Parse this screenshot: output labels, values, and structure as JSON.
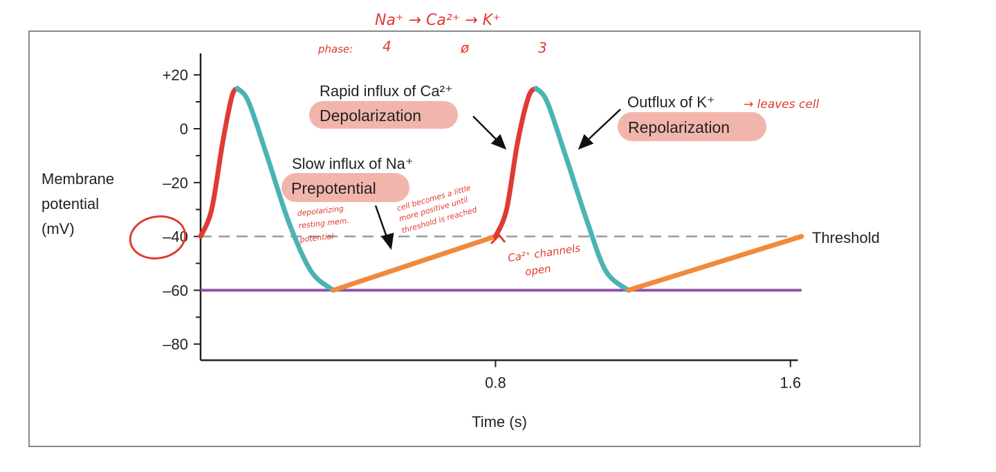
{
  "chart_data": {
    "type": "line",
    "xlabel": "Time (s)",
    "ylabel": [
      "Membrane",
      "potential",
      "(mV)"
    ],
    "xlim": [
      0,
      1.6
    ],
    "ylim": [
      -80,
      20
    ],
    "x_ticks": [
      {
        "v": 0.8,
        "label": "0.8"
      },
      {
        "v": 1.6,
        "label": "1.6"
      }
    ],
    "y_ticks": [
      {
        "v": 20,
        "label": "+20"
      },
      {
        "v": 0,
        "label": "0"
      },
      {
        "v": -20,
        "label": "–20"
      },
      {
        "v": -40,
        "label": "–40"
      },
      {
        "v": -60,
        "label": "–60"
      },
      {
        "v": -80,
        "label": "–80"
      }
    ],
    "grid": false,
    "reference_lines": [
      {
        "y": -40,
        "label": "Threshold",
        "style": "dashed",
        "color": "#999999"
      },
      {
        "y": -60,
        "label": "",
        "style": "solid",
        "color": "#8e4fa8"
      }
    ],
    "segments": [
      {
        "phase": "depolarization",
        "color": "#e03a35",
        "points": [
          [
            0,
            -40
          ],
          [
            0.03,
            -30
          ],
          [
            0.06,
            -5
          ],
          [
            0.085,
            12
          ],
          [
            0.1,
            15
          ]
        ]
      },
      {
        "phase": "repolarization",
        "color": "#4bb3b3",
        "points": [
          [
            0.1,
            15
          ],
          [
            0.13,
            10
          ],
          [
            0.18,
            -10
          ],
          [
            0.24,
            -35
          ],
          [
            0.3,
            -53
          ],
          [
            0.36,
            -60
          ]
        ]
      },
      {
        "phase": "prepotential",
        "color": "#f08a3c",
        "points": [
          [
            0.36,
            -60
          ],
          [
            0.8,
            -40
          ]
        ]
      },
      {
        "phase": "depolarization",
        "color": "#e03a35",
        "points": [
          [
            0.8,
            -40
          ],
          [
            0.83,
            -30
          ],
          [
            0.86,
            -5
          ],
          [
            0.89,
            12
          ],
          [
            0.91,
            15
          ]
        ]
      },
      {
        "phase": "repolarization",
        "color": "#4bb3b3",
        "points": [
          [
            0.91,
            15
          ],
          [
            0.94,
            10
          ],
          [
            0.99,
            -10
          ],
          [
            1.05,
            -35
          ],
          [
            1.1,
            -53
          ],
          [
            1.16,
            -60
          ]
        ]
      },
      {
        "phase": "prepotential",
        "color": "#f08a3c",
        "points": [
          [
            1.16,
            -60
          ],
          [
            1.63,
            -40
          ]
        ]
      }
    ],
    "annotations": {
      "ca_influx": "Rapid influx of Ca²⁺",
      "depolarization": "Depolarization",
      "k_outflux": "Outflux of K⁺",
      "repolarization": "Repolarization",
      "na_influx": "Slow influx of Na⁺",
      "prepotential": "Prepotential",
      "pill_color": "#f2b5ac"
    },
    "handwritten": {
      "ions": "Na⁺  →  Ca²⁺  →  K⁺",
      "phase_label": "phase:",
      "phase_4": "4",
      "phase_0": "ø",
      "phase_3": "3",
      "leaves_cell": "→ leaves cell",
      "depol_note": [
        "depolarizing",
        "resting mem.",
        "potential"
      ],
      "cell_note": [
        "cell becomes a little",
        "more positive until",
        "threshold is reached"
      ],
      "ca_channels": [
        "Ca²⁺ channels",
        "open"
      ],
      "ink_color": "#e03a2e"
    }
  }
}
